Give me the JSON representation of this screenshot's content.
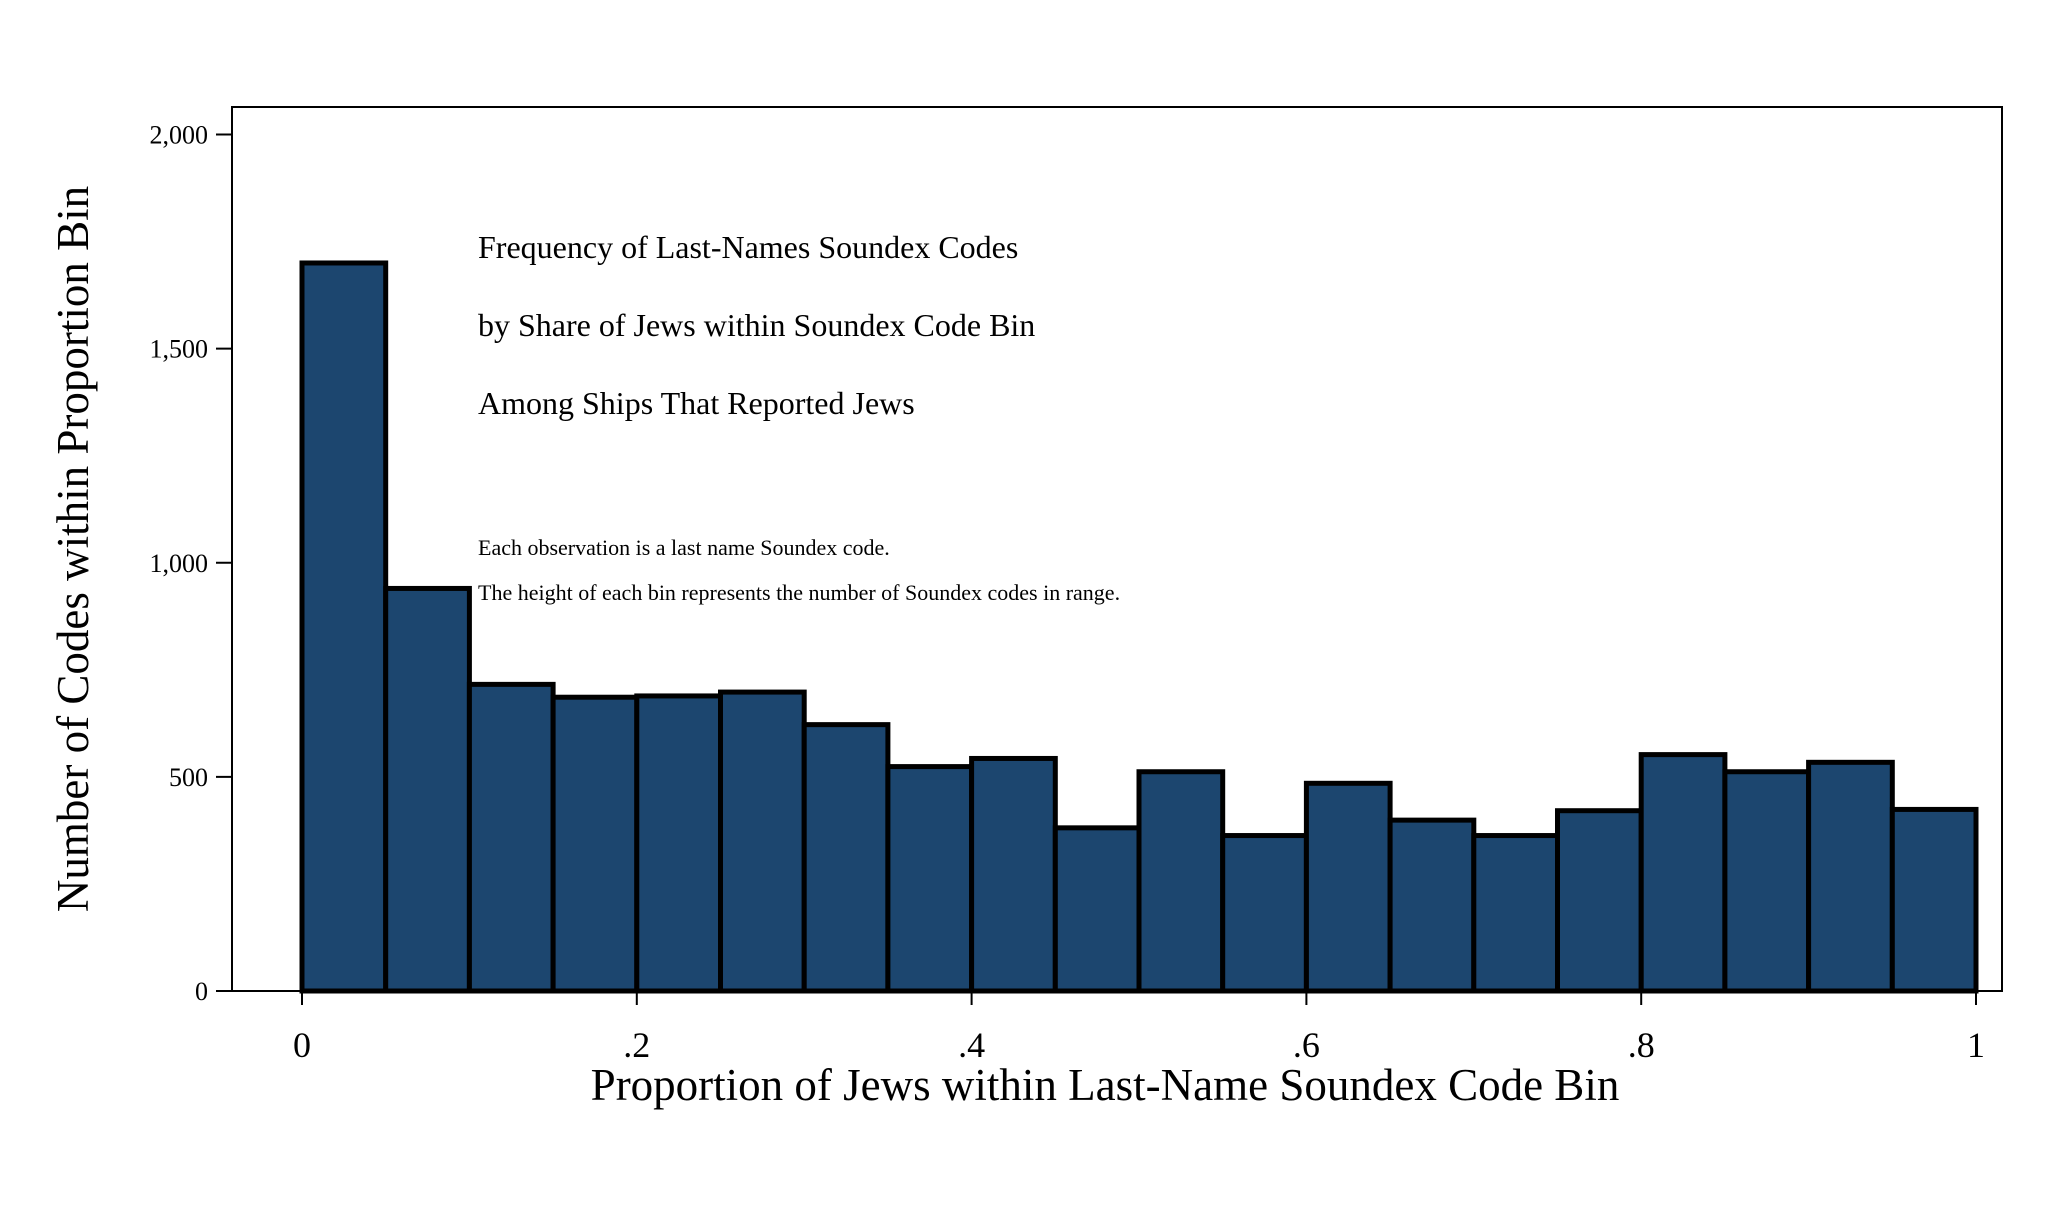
{
  "chart_data": {
    "type": "bar",
    "subtype": "histogram",
    "bin_width": 0.05,
    "x_range": [
      0,
      1
    ],
    "bin_starts": [
      0,
      0.05,
      0.1,
      0.15,
      0.2,
      0.25,
      0.3,
      0.35,
      0.4,
      0.45,
      0.5,
      0.55,
      0.6,
      0.65,
      0.7,
      0.75,
      0.8,
      0.85,
      0.9,
      0.95
    ],
    "values": [
      1700,
      940,
      716,
      686,
      689,
      698,
      622,
      524,
      543,
      381,
      512,
      363,
      485,
      399,
      363,
      421,
      552,
      512,
      534,
      424
    ],
    "title_lines": [
      "Frequency of Last-Names Soundex Codes",
      "by Share of Jews within Soundex Code Bin",
      "Among Ships That Reported Jews"
    ],
    "notes": [
      "Each observation is a last name Soundex code.",
      "The height of each bin represents the number of Soundex codes in range."
    ],
    "xlabel": "Proportion of Jews within Last-Name Soundex Code Bin",
    "ylabel": "Number of Codes within Proportion Bin",
    "xlim": [
      0,
      1
    ],
    "ylim": [
      0,
      2000
    ],
    "x_ticks": [
      {
        "value": 0,
        "label": "0"
      },
      {
        "value": 0.2,
        "label": ".2"
      },
      {
        "value": 0.4,
        "label": ".4"
      },
      {
        "value": 0.6,
        "label": ".6"
      },
      {
        "value": 0.8,
        "label": ".8"
      },
      {
        "value": 1,
        "label": "1"
      }
    ],
    "y_ticks": [
      {
        "value": 0,
        "label": "0"
      },
      {
        "value": 500,
        "label": "500"
      },
      {
        "value": 1000,
        "label": "1,000"
      },
      {
        "value": 1500,
        "label": "1,500"
      },
      {
        "value": 2000,
        "label": "2,000"
      }
    ],
    "grid": false,
    "colors": {
      "bar_fill": "#1c466f",
      "bar_edge": "#000000"
    }
  }
}
